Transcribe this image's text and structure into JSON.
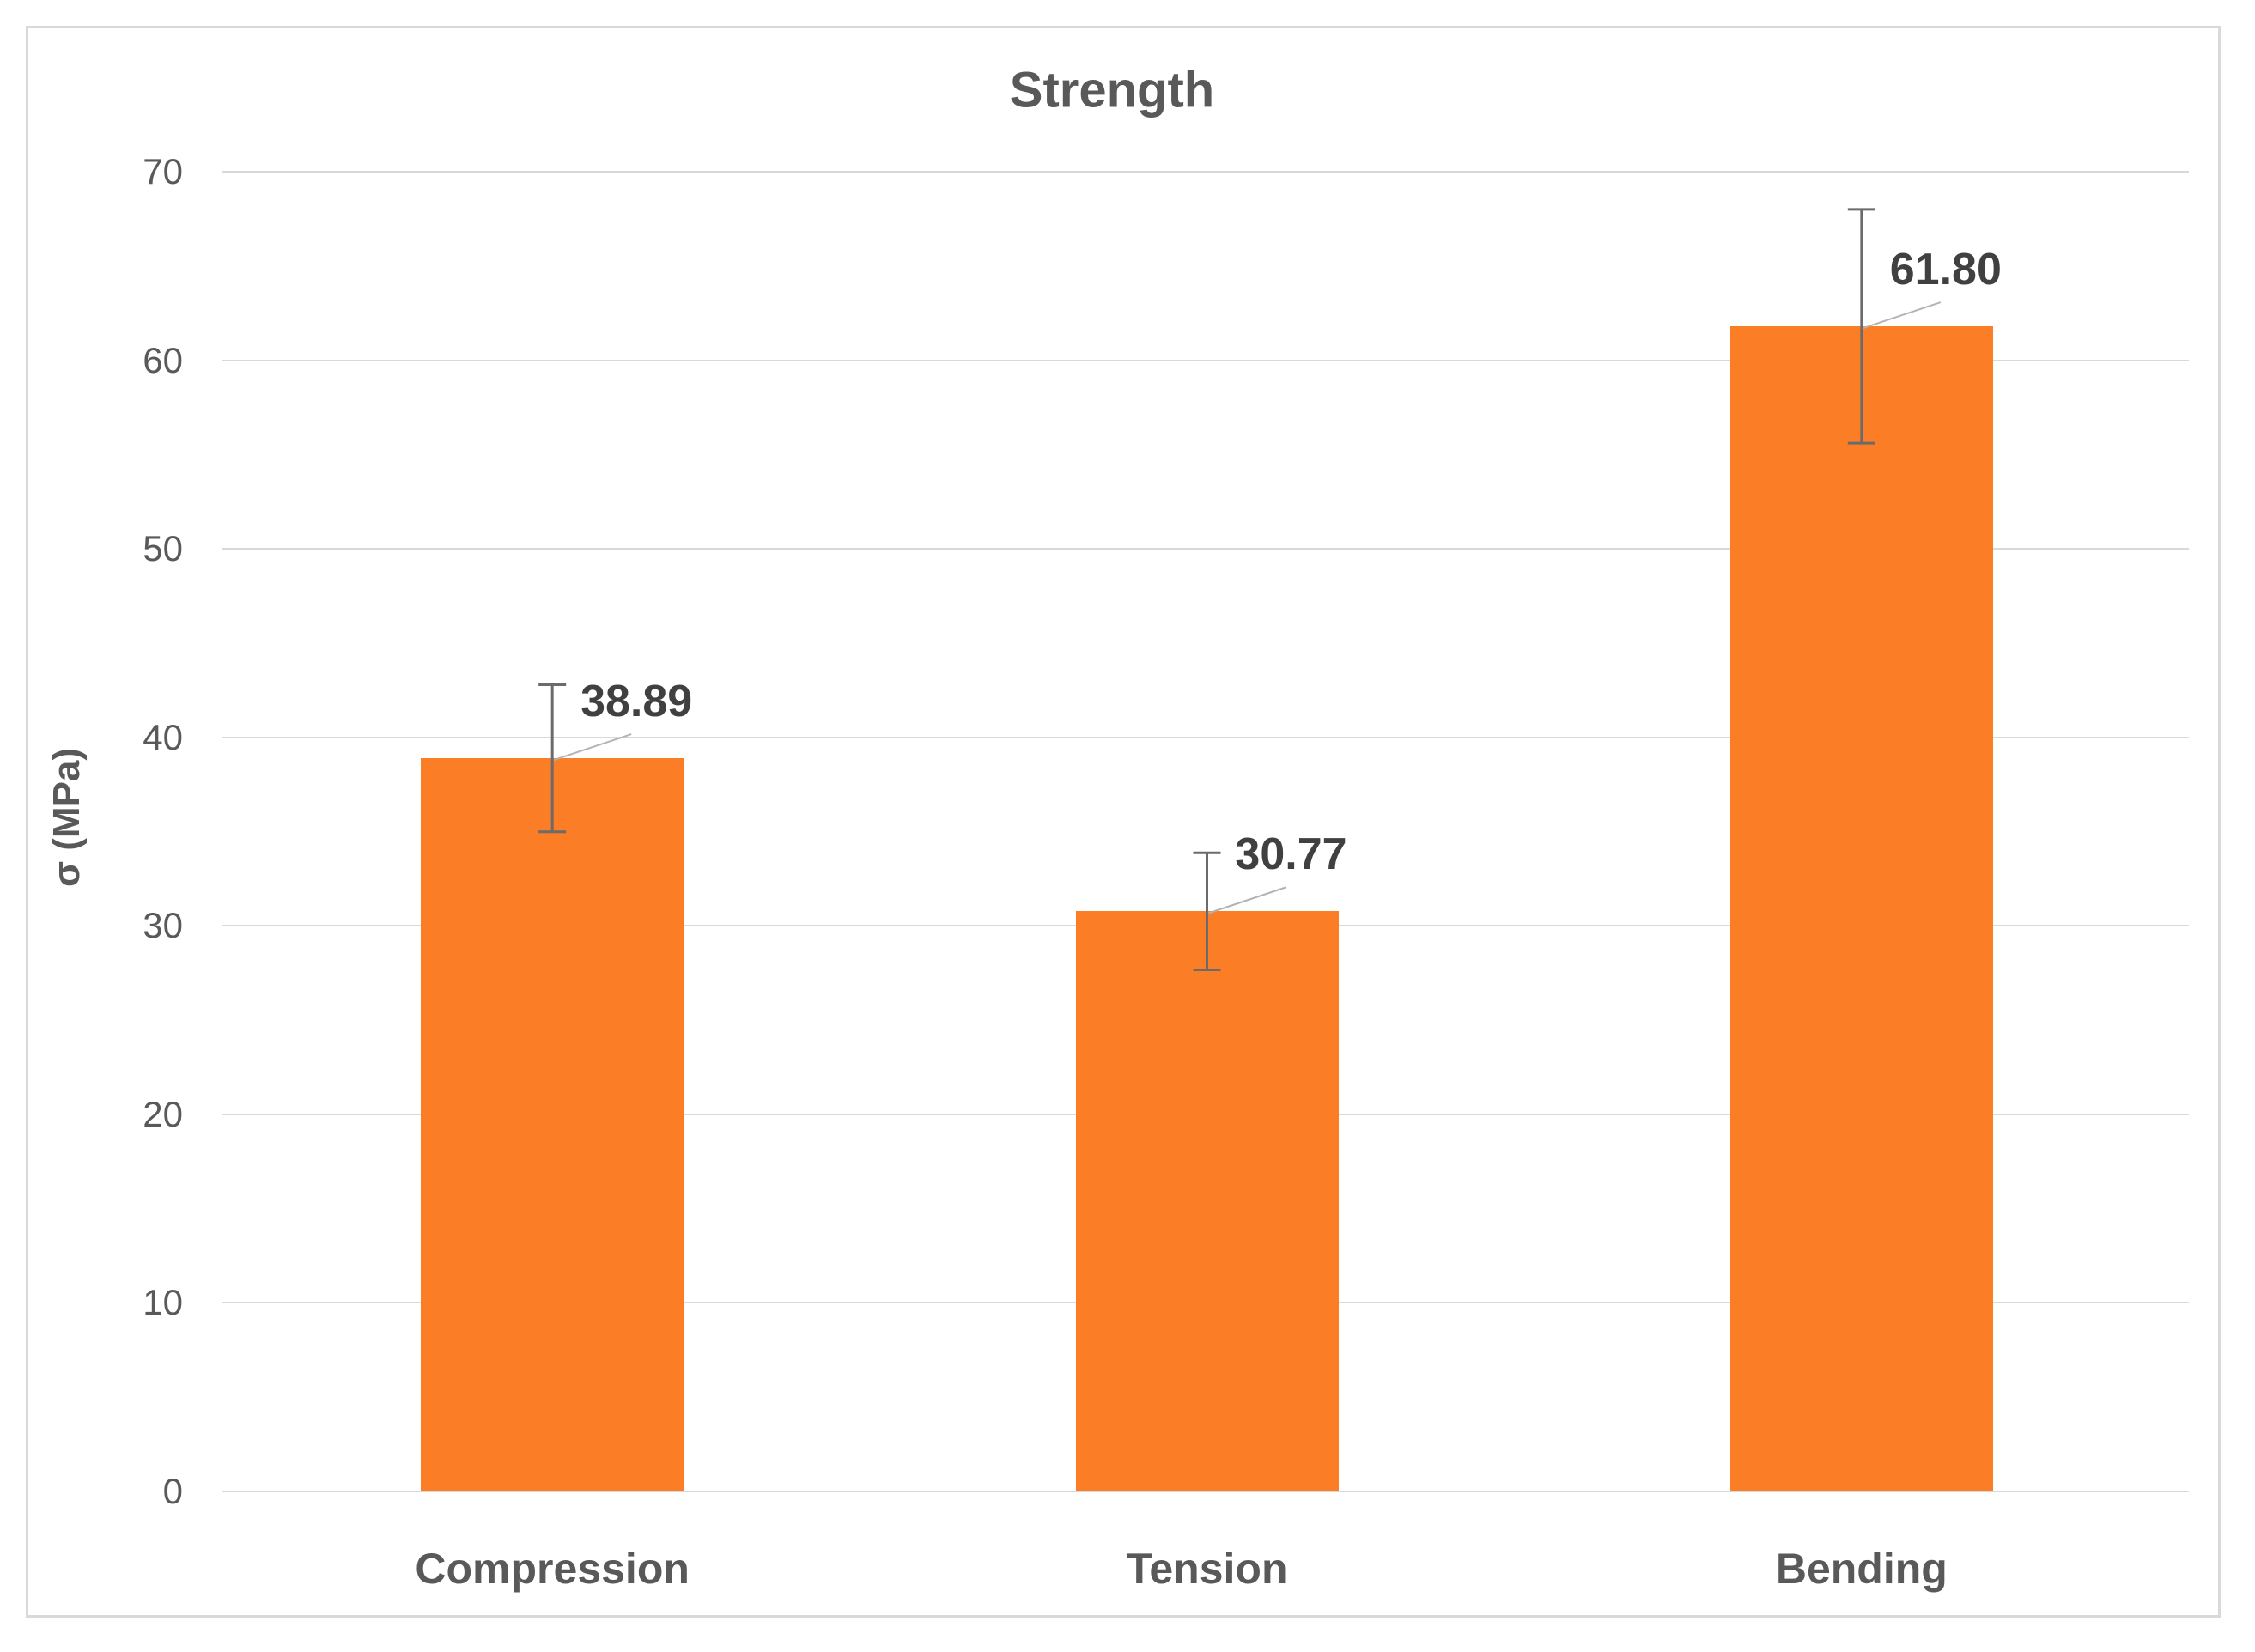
{
  "window": {
    "background_color": "#ffffff",
    "frame_border_color": "#d9d9d9"
  },
  "chart_data": {
    "type": "bar",
    "title": "Strength",
    "xlabel": "",
    "ylabel": "σ (MPa)",
    "categories": [
      "Compression",
      "Tension",
      "Bending"
    ],
    "values": [
      38.89,
      30.77,
      61.8
    ],
    "value_labels": [
      "38.89",
      "30.77",
      "61.80"
    ],
    "error_plus": [
      3.9,
      3.1,
      6.2
    ],
    "error_minus": [
      3.9,
      3.1,
      6.2
    ],
    "ylim": [
      0,
      70
    ],
    "yticks": [
      0,
      10,
      20,
      30,
      40,
      50,
      60,
      70
    ],
    "grid": true,
    "legend_position": "none",
    "colors": {
      "bar": "#fb7d26",
      "gridline": "#d9d9d9",
      "axis_text": "#595959",
      "title_text": "#595959",
      "data_label_text": "#404040",
      "error_bar": "#6b6b6b",
      "leader_line": "#b3b3b3"
    }
  }
}
